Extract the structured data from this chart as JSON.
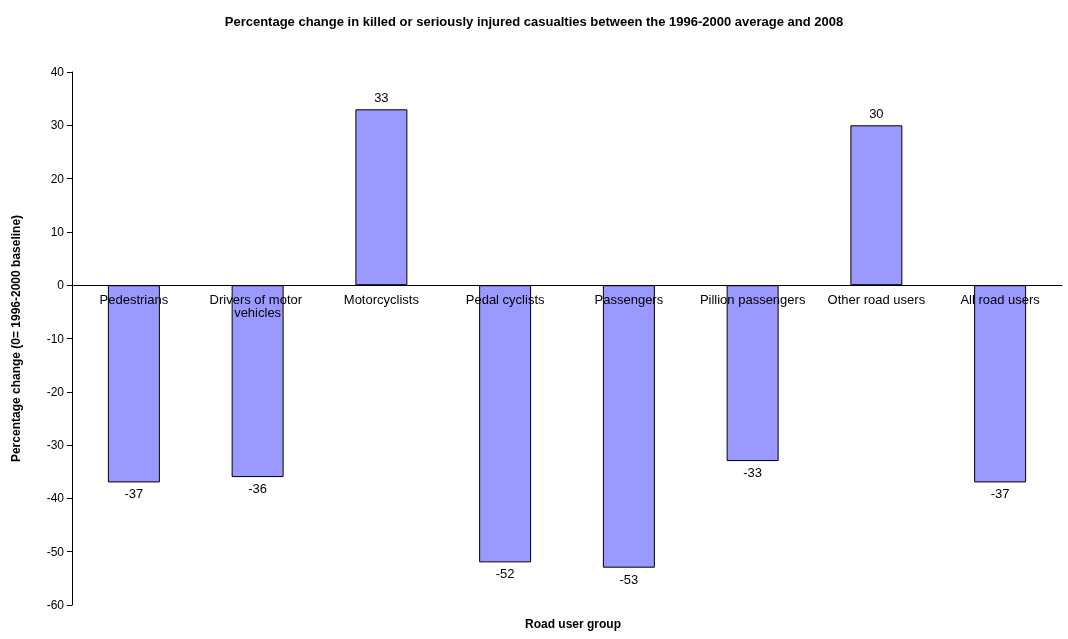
{
  "chart_data": {
    "type": "bar",
    "title": "Percentage change in killed or seriously injured casualties between the 1996-2000 average and 2008",
    "xlabel": "Road user group",
    "ylabel": "Percentage change (0= 1996-2000 baseline)",
    "categories": [
      "Pedestrians",
      "Drivers of motor vehicles",
      "Motorcyclists",
      "Pedal cyclists",
      "Passengers",
      "Pillion passengers",
      "Other road users",
      "All road users"
    ],
    "values": [
      -37,
      -36,
      33,
      -52,
      -53,
      -33,
      30,
      -37
    ],
    "color": "#9999ff",
    "ylim": [
      -60,
      40
    ],
    "yticks": [
      -60,
      -50,
      -40,
      -30,
      -20,
      -10,
      0,
      10,
      20,
      30,
      40
    ],
    "grid": false,
    "data_labels": true
  }
}
